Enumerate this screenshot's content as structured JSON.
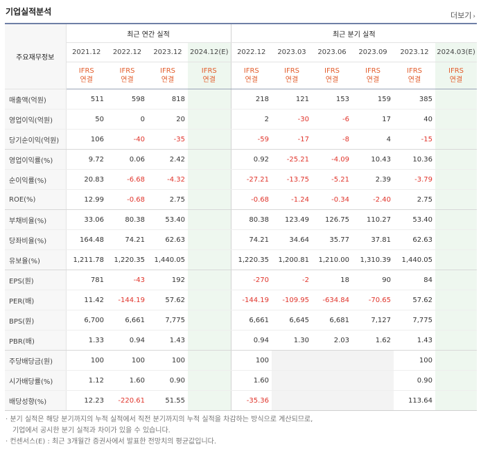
{
  "title": "기업실적분석",
  "more_label": "더보기",
  "corner_label": "주요재무정보",
  "groups": {
    "annual": "최근 연간 실적",
    "quarterly": "최근 분기 실적"
  },
  "periods": [
    "2021.12",
    "2022.12",
    "2023.12",
    "2024.12(E)",
    "2022.12",
    "2023.03",
    "2023.06",
    "2023.09",
    "2023.12",
    "2024.03(E)"
  ],
  "basis_top": "IFRS",
  "basis_bottom": "연결",
  "rows": [
    {
      "label": "매출액(억원)",
      "v": [
        "511",
        "598",
        "818",
        "",
        "218",
        "121",
        "153",
        "159",
        "385",
        ""
      ]
    },
    {
      "label": "영업이익(억원)",
      "v": [
        "50",
        "0",
        "20",
        "",
        "2",
        "-30",
        "-6",
        "17",
        "40",
        ""
      ]
    },
    {
      "label": "당기순이익(억원)",
      "v": [
        "106",
        "-40",
        "-35",
        "",
        "-59",
        "-17",
        "-8",
        "4",
        "-15",
        ""
      ]
    },
    {
      "label": "영업이익률(%)",
      "v": [
        "9.72",
        "0.06",
        "2.42",
        "",
        "0.92",
        "-25.21",
        "-4.09",
        "10.43",
        "10.36",
        ""
      ]
    },
    {
      "label": "순이익률(%)",
      "v": [
        "20.83",
        "-6.68",
        "-4.32",
        "",
        "-27.21",
        "-13.75",
        "-5.21",
        "2.39",
        "-3.79",
        ""
      ]
    },
    {
      "label": "ROE(%)",
      "v": [
        "12.99",
        "-0.68",
        "2.75",
        "",
        "-0.68",
        "-1.24",
        "-0.34",
        "-2.40",
        "2.75",
        ""
      ]
    },
    {
      "label": "부채비율(%)",
      "v": [
        "33.06",
        "80.38",
        "53.40",
        "",
        "80.38",
        "123.49",
        "126.75",
        "110.27",
        "53.40",
        ""
      ]
    },
    {
      "label": "당좌비율(%)",
      "v": [
        "164.48",
        "74.21",
        "62.63",
        "",
        "74.21",
        "34.64",
        "35.77",
        "37.81",
        "62.63",
        ""
      ]
    },
    {
      "label": "유보율(%)",
      "v": [
        "1,211.78",
        "1,220.35",
        "1,440.05",
        "",
        "1,220.35",
        "1,200.81",
        "1,210.00",
        "1,310.39",
        "1,440.05",
        ""
      ]
    },
    {
      "label": "EPS(원)",
      "v": [
        "781",
        "-43",
        "192",
        "",
        "-270",
        "-2",
        "18",
        "90",
        "84",
        ""
      ]
    },
    {
      "label": "PER(배)",
      "v": [
        "11.42",
        "-144.19",
        "57.62",
        "",
        "-144.19",
        "-109.95",
        "-634.84",
        "-70.65",
        "57.62",
        ""
      ]
    },
    {
      "label": "BPS(원)",
      "v": [
        "6,700",
        "6,661",
        "7,775",
        "",
        "6,661",
        "6,645",
        "6,681",
        "7,127",
        "7,775",
        ""
      ]
    },
    {
      "label": "PBR(배)",
      "v": [
        "1.33",
        "0.94",
        "1.43",
        "",
        "0.94",
        "1.30",
        "2.03",
        "1.62",
        "1.43",
        ""
      ]
    },
    {
      "label": "주당배당금(원)",
      "v": [
        "100",
        "100",
        "100",
        "",
        "100",
        "",
        "",
        "",
        "100",
        ""
      ]
    },
    {
      "label": "시가배당률(%)",
      "v": [
        "1.12",
        "1.60",
        "0.90",
        "",
        "1.60",
        "",
        "",
        "",
        "0.90",
        ""
      ]
    },
    {
      "label": "배당성향(%)",
      "v": [
        "12.23",
        "-220.61",
        "51.55",
        "",
        "-35.36",
        "",
        "",
        "",
        "113.64",
        ""
      ]
    }
  ],
  "notes": [
    "· 분기 실적은 해당 분기까지의 누적 실적에서 직전 분기까지의 누적 실적을 차감하는 방식으로 계산되므로,",
    "기업에서 공시한 분기 실적과 차이가 있을 수 있습니다.",
    "· 컨센서스(E) : 최근 3개월간 증권사에서 발표한 전망치의 평균값입니다."
  ]
}
